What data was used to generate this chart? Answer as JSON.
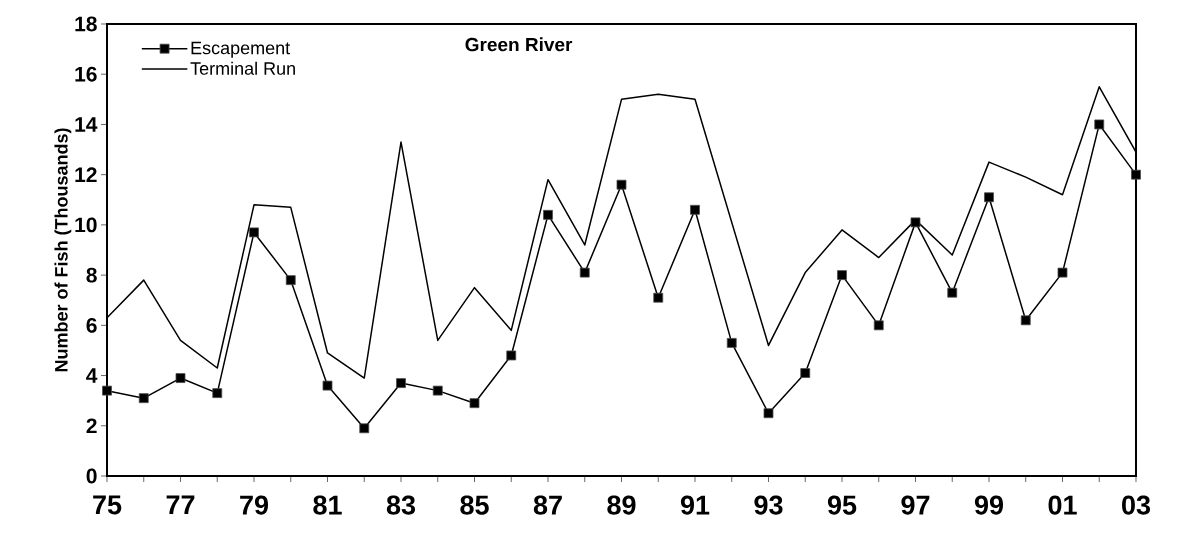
{
  "chart_data": {
    "type": "line",
    "title": "Green River",
    "ylabel": "Number of Fish (Thousands)",
    "categories": [
      "75",
      null,
      "77",
      null,
      "79",
      null,
      "81",
      null,
      "83",
      null,
      "85",
      null,
      "87",
      null,
      "89",
      null,
      "91",
      null,
      "93",
      null,
      "95",
      null,
      "97",
      null,
      "99",
      null,
      "01",
      null,
      "03"
    ],
    "series": [
      {
        "name": "Escapement",
        "color": "#000000",
        "marker": "square",
        "values": [
          3.4,
          3.1,
          3.9,
          3.3,
          9.7,
          7.8,
          3.6,
          1.9,
          3.7,
          3.4,
          2.9,
          4.8,
          10.4,
          8.1,
          11.6,
          7.1,
          10.6,
          5.3,
          2.5,
          4.1,
          8.0,
          6.0,
          10.1,
          7.3,
          11.1,
          6.2,
          8.1,
          14.0,
          12.0
        ]
      },
      {
        "name": "Terminal Run",
        "color": "#000000",
        "marker": "none",
        "values": [
          6.3,
          7.8,
          5.4,
          4.3,
          10.8,
          10.7,
          4.9,
          3.9,
          13.3,
          5.4,
          7.5,
          5.8,
          11.8,
          9.2,
          15.0,
          15.2,
          15.0,
          10.1,
          5.2,
          8.1,
          9.8,
          8.7,
          10.2,
          8.8,
          12.5,
          11.9,
          11.2,
          15.5,
          12.9
        ]
      }
    ],
    "ylim": [
      0,
      18
    ],
    "yticks": [
      0,
      2,
      4,
      6,
      8,
      10,
      12,
      14,
      16,
      18
    ],
    "grid": false,
    "legend": "top left",
    "line_style": "solid"
  }
}
